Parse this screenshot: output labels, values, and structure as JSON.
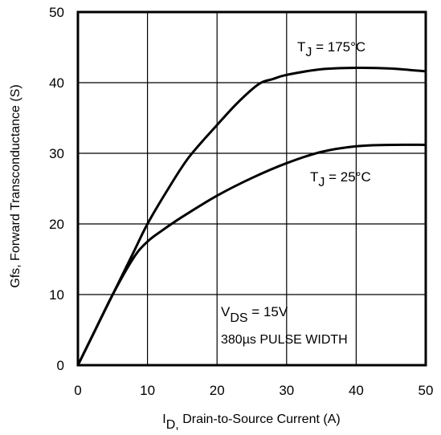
{
  "chart_data": {
    "type": "line",
    "title": "",
    "xlabel_main": "I",
    "xlabel_sub": "D,",
    "xlabel_rest": " Drain-to-Source Current (A)",
    "ylabel": "Gfs, Forward Transconductance (S)",
    "xlim": [
      0,
      50
    ],
    "ylim": [
      0,
      50
    ],
    "xticks": [
      0,
      10,
      20,
      30,
      40,
      50
    ],
    "yticks": [
      0,
      10,
      20,
      30,
      40,
      50
    ],
    "grid": true,
    "series": [
      {
        "name": "T_J = 175°C",
        "label_main": "T",
        "label_sub": "J",
        "label_rest": " = 175°C",
        "points": [
          [
            0,
            0
          ],
          [
            2,
            4
          ],
          [
            5,
            10
          ],
          [
            8,
            16
          ],
          [
            10,
            20
          ],
          [
            13,
            25
          ],
          [
            16,
            29.5
          ],
          [
            20,
            34
          ],
          [
            23,
            37.2
          ],
          [
            26,
            39.8
          ],
          [
            28,
            40.5
          ],
          [
            30,
            41.1
          ],
          [
            35,
            41.9
          ],
          [
            40,
            42.1
          ],
          [
            45,
            42
          ],
          [
            50,
            41.6
          ]
        ]
      },
      {
        "name": "T_J = 25°C",
        "label_main": "T",
        "label_sub": "J",
        "label_rest": " = 25°C",
        "points": [
          [
            0,
            0
          ],
          [
            2,
            4
          ],
          [
            5,
            10
          ],
          [
            8,
            15.2
          ],
          [
            10,
            17.5
          ],
          [
            12,
            19
          ],
          [
            15,
            21
          ],
          [
            20,
            24
          ],
          [
            25,
            26.5
          ],
          [
            30,
            28.6
          ],
          [
            35,
            30.2
          ],
          [
            40,
            31
          ],
          [
            45,
            31.2
          ],
          [
            50,
            31.2
          ]
        ]
      }
    ],
    "annotation": {
      "line1_main": "V",
      "line1_sub": "DS",
      "line1_rest": " = 15V",
      "line2": "380µs PULSE WIDTH"
    }
  }
}
